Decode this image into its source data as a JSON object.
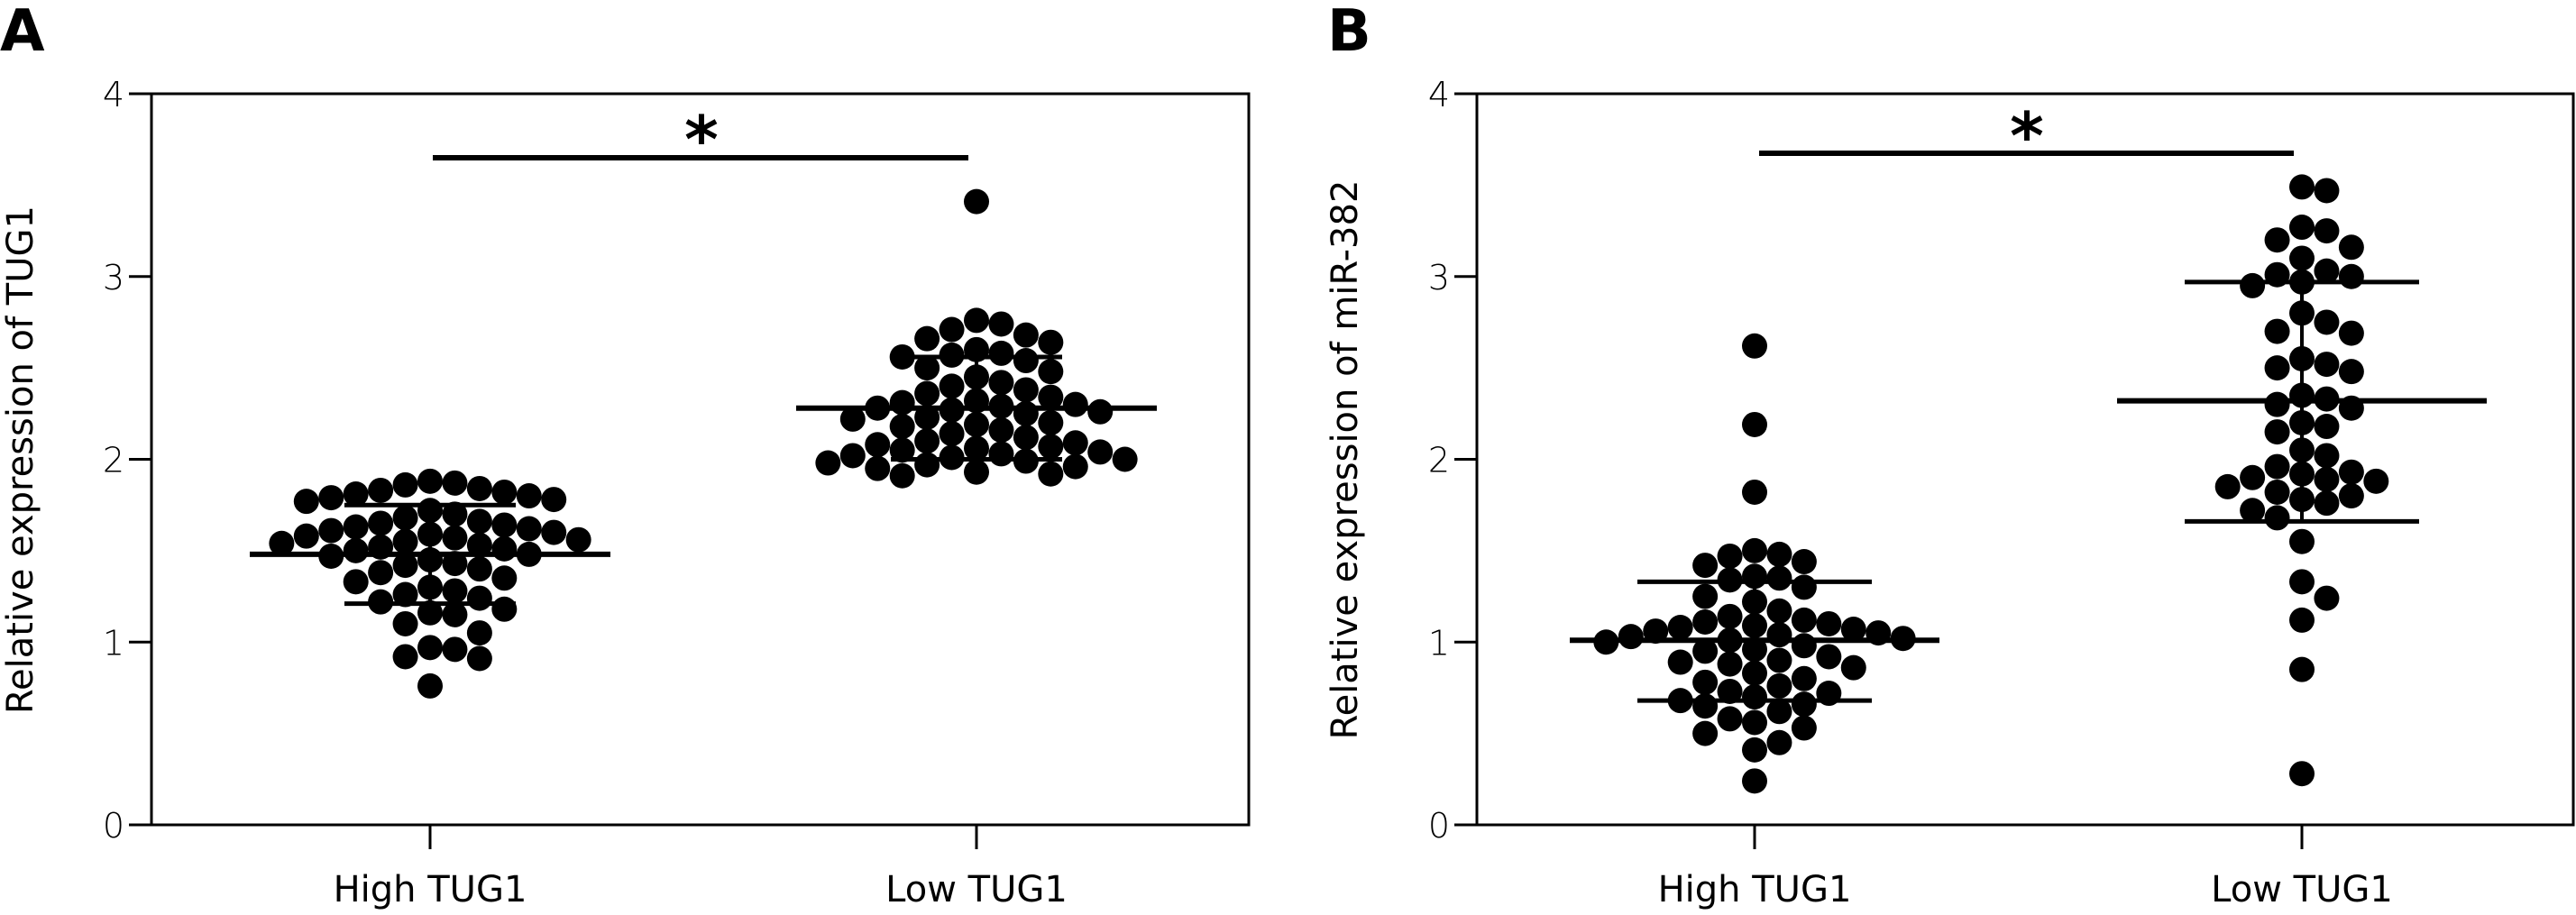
{
  "chart_data": [
    {
      "panel": "A",
      "type": "scatter",
      "subtype": "dot plot with mean ± SD",
      "title": "",
      "xlabel": "",
      "ylabel": "Relative expression of TUG1",
      "ylim": [
        0,
        4
      ],
      "yticks": [
        "0",
        "1",
        "2",
        "3",
        "4"
      ],
      "categories": [
        "High TUG1",
        "Low TUG1"
      ],
      "significance": {
        "label": "*",
        "between": [
          "High TUG1",
          "Low TUG1"
        ],
        "level": 3.66
      },
      "series": [
        {
          "name": "High TUG1",
          "mean": 1.48,
          "sd_low": 1.21,
          "sd_high": 1.75,
          "values": [
            1.88,
            1.87,
            1.86,
            1.84,
            1.83,
            1.82,
            1.81,
            1.8,
            1.79,
            1.78,
            1.77,
            1.72,
            1.7,
            1.68,
            1.66,
            1.65,
            1.64,
            1.63,
            1.62,
            1.61,
            1.6,
            1.59,
            1.58,
            1.57,
            1.56,
            1.55,
            1.54,
            1.53,
            1.52,
            1.51,
            1.5,
            1.48,
            1.47,
            1.45,
            1.43,
            1.42,
            1.4,
            1.38,
            1.35,
            1.33,
            1.3,
            1.28,
            1.26,
            1.24,
            1.22,
            1.18,
            1.16,
            1.15,
            1.1,
            1.05,
            0.97,
            0.96,
            0.92,
            0.91,
            0.76
          ]
        },
        {
          "name": "Low TUG1",
          "mean": 2.28,
          "sd_low": 2.0,
          "sd_high": 2.56,
          "values": [
            3.41,
            2.76,
            2.74,
            2.71,
            2.68,
            2.66,
            2.64,
            2.6,
            2.58,
            2.57,
            2.56,
            2.54,
            2.5,
            2.48,
            2.45,
            2.42,
            2.4,
            2.38,
            2.36,
            2.34,
            2.32,
            2.31,
            2.3,
            2.29,
            2.28,
            2.27,
            2.26,
            2.25,
            2.23,
            2.22,
            2.2,
            2.19,
            2.18,
            2.16,
            2.14,
            2.12,
            2.1,
            2.09,
            2.08,
            2.07,
            2.06,
            2.05,
            2.04,
            2.03,
            2.02,
            2.01,
            2.0,
            1.99,
            1.98,
            1.97,
            1.96,
            1.95,
            1.93,
            1.92,
            1.91
          ]
        }
      ]
    },
    {
      "panel": "B",
      "type": "scatter",
      "subtype": "dot plot with mean ± SD",
      "title": "",
      "xlabel": "",
      "ylabel": "Relative expression of miR-382",
      "ylim": [
        0,
        4
      ],
      "yticks": [
        "0",
        "1",
        "2",
        "3",
        "4"
      ],
      "categories": [
        "High TUG1",
        "Low TUG1"
      ],
      "significance": {
        "label": "*",
        "between": [
          "High TUG1",
          "Low TUG1"
        ],
        "level": 3.69
      },
      "series": [
        {
          "name": "High TUG1",
          "mean": 1.01,
          "sd_low": 0.68,
          "sd_high": 1.33,
          "values": [
            2.62,
            2.19,
            1.82,
            1.5,
            1.48,
            1.47,
            1.44,
            1.42,
            1.36,
            1.35,
            1.34,
            1.3,
            1.25,
            1.22,
            1.17,
            1.14,
            1.12,
            1.11,
            1.1,
            1.09,
            1.08,
            1.07,
            1.06,
            1.05,
            1.04,
            1.03,
            1.02,
            1.01,
            1.0,
            0.98,
            0.96,
            0.95,
            0.92,
            0.9,
            0.89,
            0.88,
            0.86,
            0.83,
            0.8,
            0.78,
            0.76,
            0.73,
            0.72,
            0.7,
            0.68,
            0.66,
            0.65,
            0.62,
            0.58,
            0.56,
            0.53,
            0.5,
            0.45,
            0.41,
            0.24
          ]
        },
        {
          "name": "Low TUG1",
          "mean": 2.32,
          "sd_low": 1.66,
          "sd_high": 2.97,
          "values": [
            3.49,
            3.47,
            3.27,
            3.25,
            3.2,
            3.16,
            3.1,
            3.03,
            3.01,
            3.0,
            2.97,
            2.95,
            2.8,
            2.75,
            2.7,
            2.69,
            2.55,
            2.52,
            2.5,
            2.48,
            2.35,
            2.33,
            2.3,
            2.28,
            2.2,
            2.18,
            2.15,
            2.05,
            2.02,
            1.96,
            1.93,
            1.92,
            1.9,
            1.89,
            1.88,
            1.85,
            1.82,
            1.8,
            1.78,
            1.76,
            1.72,
            1.68,
            1.55,
            1.33,
            1.24,
            1.12,
            0.85,
            0.28
          ]
        }
      ]
    }
  ],
  "panels": [
    {
      "letter": "A",
      "ylabel": "Relative expression of TUG1",
      "cat1": "High TUG1",
      "cat2": "Low TUG1",
      "star": "*"
    },
    {
      "letter": "B",
      "ylabel": "Relative expression of miR-382",
      "cat1": "High TUG1",
      "cat2": "Low TUG1",
      "star": "*"
    }
  ],
  "yticks": [
    "0",
    "1",
    "2",
    "3",
    "4"
  ]
}
